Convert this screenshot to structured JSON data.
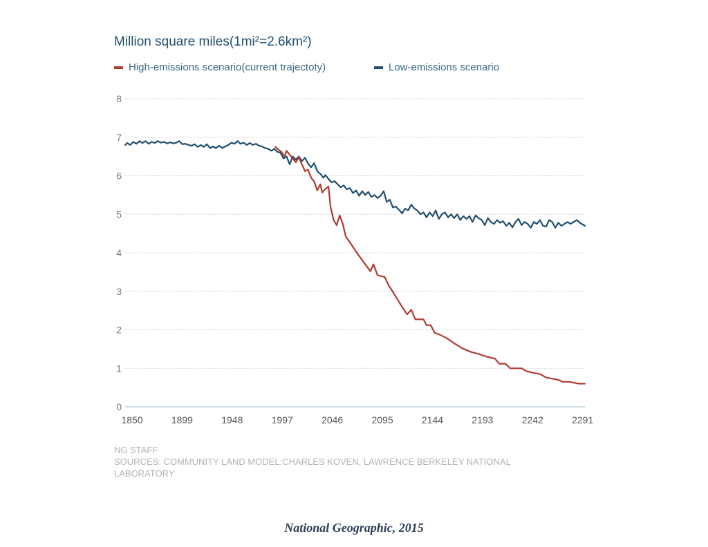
{
  "chart_data": {
    "type": "line",
    "title": "Million square miles(1mi²=2.6km²)",
    "xlabel": "",
    "ylabel": "",
    "xlim": [
      1850,
      2300
    ],
    "ylim": [
      0,
      8
    ],
    "x_ticks": [
      "1850",
      "1899",
      "1948",
      "1997",
      "2046",
      "2095",
      "2144",
      "2193",
      "2242",
      "2291"
    ],
    "x_tick_values": [
      1850,
      1899,
      1948,
      1997,
      2046,
      2095,
      2144,
      2193,
      2242,
      2291
    ],
    "y_ticks": [
      "0",
      "1",
      "2",
      "3",
      "4",
      "5",
      "6",
      "7",
      "8"
    ],
    "y_tick_values": [
      0,
      1,
      2,
      3,
      4,
      5,
      6,
      7,
      8
    ],
    "grid": "horizontal dotted",
    "legend_position": "top-left",
    "series": [
      {
        "name": "High-emissions scenario(current trajectoty)",
        "color": "#b03a2e",
        "points": [
          [
            1997,
            6.75
          ],
          [
            2000,
            6.68
          ],
          [
            2003,
            6.62
          ],
          [
            2006,
            6.5
          ],
          [
            2008,
            6.65
          ],
          [
            2011,
            6.55
          ],
          [
            2014,
            6.45
          ],
          [
            2017,
            6.35
          ],
          [
            2020,
            6.48
          ],
          [
            2023,
            6.3
          ],
          [
            2026,
            6.12
          ],
          [
            2029,
            6.16
          ],
          [
            2032,
            5.95
          ],
          [
            2035,
            5.85
          ],
          [
            2038,
            5.62
          ],
          [
            2041,
            5.78
          ],
          [
            2043,
            5.56
          ],
          [
            2046,
            5.66
          ],
          [
            2049,
            5.72
          ],
          [
            2051,
            5.2
          ],
          [
            2054,
            4.85
          ],
          [
            2057,
            4.72
          ],
          [
            2060,
            4.97
          ],
          [
            2063,
            4.75
          ],
          [
            2066,
            4.42
          ],
          [
            2070,
            4.27
          ],
          [
            2075,
            4.07
          ],
          [
            2080,
            3.88
          ],
          [
            2085,
            3.7
          ],
          [
            2090,
            3.52
          ],
          [
            2093,
            3.7
          ],
          [
            2097,
            3.42
          ],
          [
            2100,
            3.4
          ],
          [
            2104,
            3.37
          ],
          [
            2108,
            3.15
          ],
          [
            2114,
            2.9
          ],
          [
            2120,
            2.64
          ],
          [
            2126,
            2.4
          ],
          [
            2130,
            2.52
          ],
          [
            2134,
            2.27
          ],
          [
            2138,
            2.27
          ],
          [
            2142,
            2.27
          ],
          [
            2145,
            2.12
          ],
          [
            2149,
            2.12
          ],
          [
            2153,
            1.92
          ],
          [
            2158,
            1.87
          ],
          [
            2165,
            1.78
          ],
          [
            2172,
            1.65
          ],
          [
            2180,
            1.52
          ],
          [
            2188,
            1.43
          ],
          [
            2196,
            1.37
          ],
          [
            2204,
            1.3
          ],
          [
            2212,
            1.25
          ],
          [
            2216,
            1.12
          ],
          [
            2222,
            1.12
          ],
          [
            2227,
            1.0
          ],
          [
            2232,
            1.0
          ],
          [
            2238,
            1.0
          ],
          [
            2243,
            0.92
          ],
          [
            2250,
            0.88
          ],
          [
            2256,
            0.85
          ],
          [
            2262,
            0.76
          ],
          [
            2268,
            0.73
          ],
          [
            2274,
            0.7
          ],
          [
            2278,
            0.65
          ],
          [
            2285,
            0.65
          ],
          [
            2290,
            0.62
          ],
          [
            2294,
            0.6
          ],
          [
            2300,
            0.6
          ]
        ]
      },
      {
        "name": "Low-emissions scenario",
        "color": "#1f4e6e",
        "points": [
          [
            1850,
            6.8
          ],
          [
            1852,
            6.85
          ],
          [
            1855,
            6.8
          ],
          [
            1858,
            6.88
          ],
          [
            1861,
            6.83
          ],
          [
            1864,
            6.9
          ],
          [
            1867,
            6.85
          ],
          [
            1870,
            6.9
          ],
          [
            1873,
            6.83
          ],
          [
            1876,
            6.88
          ],
          [
            1879,
            6.85
          ],
          [
            1882,
            6.9
          ],
          [
            1885,
            6.86
          ],
          [
            1888,
            6.88
          ],
          [
            1891,
            6.84
          ],
          [
            1894,
            6.87
          ],
          [
            1897,
            6.84
          ],
          [
            1900,
            6.86
          ],
          [
            1903,
            6.9
          ],
          [
            1906,
            6.82
          ],
          [
            1909,
            6.83
          ],
          [
            1912,
            6.8
          ],
          [
            1915,
            6.78
          ],
          [
            1918,
            6.82
          ],
          [
            1921,
            6.75
          ],
          [
            1924,
            6.8
          ],
          [
            1927,
            6.75
          ],
          [
            1930,
            6.82
          ],
          [
            1933,
            6.72
          ],
          [
            1936,
            6.76
          ],
          [
            1939,
            6.72
          ],
          [
            1942,
            6.78
          ],
          [
            1945,
            6.72
          ],
          [
            1948,
            6.76
          ],
          [
            1951,
            6.8
          ],
          [
            1954,
            6.86
          ],
          [
            1957,
            6.83
          ],
          [
            1960,
            6.9
          ],
          [
            1963,
            6.83
          ],
          [
            1966,
            6.86
          ],
          [
            1969,
            6.8
          ],
          [
            1972,
            6.85
          ],
          [
            1975,
            6.8
          ],
          [
            1978,
            6.83
          ],
          [
            1981,
            6.78
          ],
          [
            1984,
            6.76
          ],
          [
            1987,
            6.72
          ],
          [
            1990,
            6.7
          ],
          [
            1993,
            6.65
          ],
          [
            1996,
            6.7
          ],
          [
            1999,
            6.62
          ],
          [
            2002,
            6.6
          ],
          [
            2005,
            6.45
          ],
          [
            2008,
            6.5
          ],
          [
            2011,
            6.3
          ],
          [
            2014,
            6.5
          ],
          [
            2017,
            6.42
          ],
          [
            2020,
            6.5
          ],
          [
            2023,
            6.38
          ],
          [
            2026,
            6.47
          ],
          [
            2029,
            6.32
          ],
          [
            2032,
            6.22
          ],
          [
            2035,
            6.33
          ],
          [
            2038,
            6.12
          ],
          [
            2041,
            6.05
          ],
          [
            2044,
            5.95
          ],
          [
            2046,
            6.02
          ],
          [
            2049,
            5.92
          ],
          [
            2052,
            5.83
          ],
          [
            2055,
            5.86
          ],
          [
            2058,
            5.78
          ],
          [
            2061,
            5.7
          ],
          [
            2064,
            5.75
          ],
          [
            2067,
            5.65
          ],
          [
            2070,
            5.68
          ],
          [
            2073,
            5.55
          ],
          [
            2076,
            5.62
          ],
          [
            2079,
            5.48
          ],
          [
            2082,
            5.6
          ],
          [
            2085,
            5.5
          ],
          [
            2088,
            5.58
          ],
          [
            2091,
            5.45
          ],
          [
            2094,
            5.5
          ],
          [
            2097,
            5.42
          ],
          [
            2100,
            5.48
          ],
          [
            2103,
            5.6
          ],
          [
            2106,
            5.32
          ],
          [
            2109,
            5.38
          ],
          [
            2112,
            5.18
          ],
          [
            2115,
            5.2
          ],
          [
            2118,
            5.12
          ],
          [
            2121,
            5.02
          ],
          [
            2124,
            5.15
          ],
          [
            2127,
            5.1
          ],
          [
            2130,
            5.25
          ],
          [
            2133,
            5.15
          ],
          [
            2136,
            5.1
          ],
          [
            2139,
            5.0
          ],
          [
            2142,
            5.05
          ],
          [
            2145,
            4.92
          ],
          [
            2148,
            5.05
          ],
          [
            2151,
            4.95
          ],
          [
            2154,
            5.1
          ],
          [
            2157,
            4.88
          ],
          [
            2160,
            5.0
          ],
          [
            2163,
            5.05
          ],
          [
            2166,
            4.92
          ],
          [
            2169,
            5.0
          ],
          [
            2172,
            4.9
          ],
          [
            2175,
            5.0
          ],
          [
            2178,
            4.85
          ],
          [
            2181,
            4.95
          ],
          [
            2184,
            4.88
          ],
          [
            2187,
            4.95
          ],
          [
            2190,
            4.8
          ],
          [
            2193,
            4.97
          ],
          [
            2196,
            4.9
          ],
          [
            2199,
            4.85
          ],
          [
            2202,
            4.72
          ],
          [
            2205,
            4.9
          ],
          [
            2208,
            4.8
          ],
          [
            2211,
            4.75
          ],
          [
            2214,
            4.85
          ],
          [
            2217,
            4.78
          ],
          [
            2220,
            4.82
          ],
          [
            2223,
            4.7
          ],
          [
            2226,
            4.78
          ],
          [
            2229,
            4.66
          ],
          [
            2232,
            4.8
          ],
          [
            2235,
            4.88
          ],
          [
            2238,
            4.72
          ],
          [
            2241,
            4.8
          ],
          [
            2244,
            4.75
          ],
          [
            2247,
            4.65
          ],
          [
            2250,
            4.8
          ],
          [
            2253,
            4.75
          ],
          [
            2256,
            4.85
          ],
          [
            2259,
            4.7
          ],
          [
            2262,
            4.68
          ],
          [
            2265,
            4.85
          ],
          [
            2268,
            4.8
          ],
          [
            2271,
            4.65
          ],
          [
            2274,
            4.78
          ],
          [
            2277,
            4.7
          ],
          [
            2280,
            4.75
          ],
          [
            2283,
            4.8
          ],
          [
            2286,
            4.75
          ],
          [
            2289,
            4.8
          ],
          [
            2292,
            4.85
          ],
          [
            2295,
            4.78
          ],
          [
            2300,
            4.7
          ]
        ]
      }
    ]
  },
  "colors": {
    "grid": "#c8c8c8",
    "baseline": "#bcd3df",
    "title": "#1f4e6e"
  },
  "footer": {
    "staff": "NG STAFF",
    "sources": "SOURCES: COMMUNITY LAND MODEL;CHARLES KOVEN, LAWRENCE BERKELEY NATIONAL LABORATORY",
    "credit": "National Geographic, 2015"
  }
}
